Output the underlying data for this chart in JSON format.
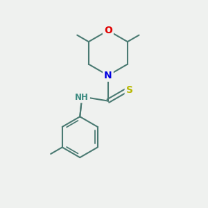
{
  "background_color": "#eff1ef",
  "bond_color": "#4a7a72",
  "atom_colors": {
    "O": "#e00000",
    "N": "#0000e0",
    "S": "#b8b800",
    "NH": "#3a8a80",
    "C": "#4a7a72"
  },
  "bond_width": 1.5,
  "font_size": 10,
  "fig_size": [
    3.0,
    3.0
  ],
  "dpi": 100,
  "xlim": [
    0,
    10
  ],
  "ylim": [
    0,
    10
  ]
}
